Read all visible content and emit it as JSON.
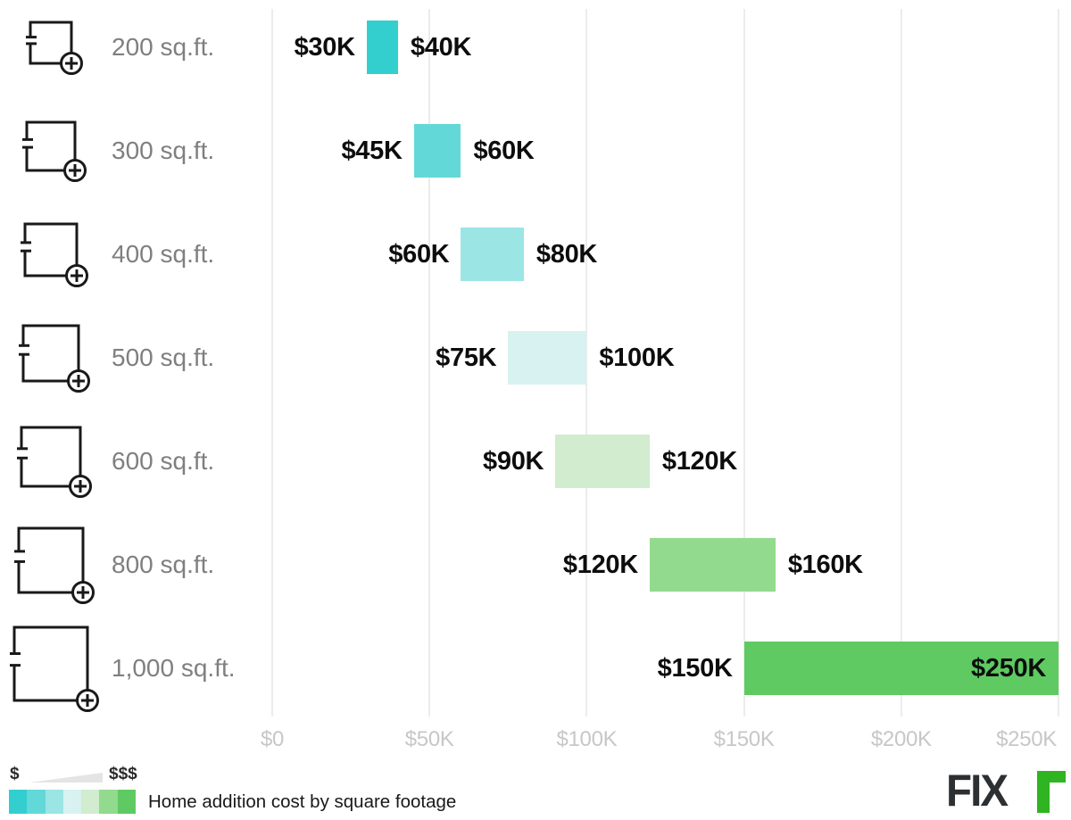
{
  "chart_data": {
    "type": "bar",
    "orientation": "horizontal-range",
    "title": "Home addition cost by square footage",
    "units": "USD (thousands)",
    "categories": [
      "200 sq.ft.",
      "300 sq.ft.",
      "400 sq.ft.",
      "500 sq.ft.",
      "600 sq.ft.",
      "800 sq.ft.",
      "1,000 sq.ft."
    ],
    "series": [
      {
        "name": "Minimum cost ($K)",
        "values": [
          30,
          45,
          60,
          75,
          90,
          120,
          150
        ]
      },
      {
        "name": "Maximum cost ($K)",
        "values": [
          40,
          60,
          80,
          100,
          120,
          160,
          250
        ]
      }
    ],
    "value_labels": {
      "min": [
        "$30K",
        "$45K",
        "$60K",
        "$75K",
        "$90K",
        "$120K",
        "$150K"
      ],
      "max": [
        "$40K",
        "$60K",
        "$80K",
        "$100K",
        "$120K",
        "$160K",
        "$250K"
      ]
    },
    "max_label_inside_bar": [
      false,
      false,
      false,
      false,
      false,
      false,
      true
    ],
    "bar_colors": [
      "#33cfcf",
      "#63d8d8",
      "#9ce5e5",
      "#d7f2f1",
      "#d1ecce",
      "#92da8e",
      "#5eca61"
    ],
    "x_ticks": {
      "labels": [
        "$0",
        "$50K",
        "$100K",
        "$150K",
        "$200K",
        "$250K"
      ],
      "values": [
        0,
        50,
        100,
        150,
        200,
        250
      ]
    },
    "xlim": [
      0,
      250
    ],
    "grid": true,
    "legend_position": "bottom-left"
  },
  "legend": {
    "low_label": "$",
    "high_label": "$$$",
    "wedge_color": "#e4e4e4"
  },
  "brand": {
    "text": "FIX",
    "r_icon_color": "#2fb521",
    "text_color": "#2d3033"
  },
  "colors": {
    "gridline": "#ececec",
    "value_text": "#0d0d0d",
    "category_text": "#7f7f7f",
    "axis_text": "#c7c7c7",
    "icon_stroke": "#191919"
  }
}
